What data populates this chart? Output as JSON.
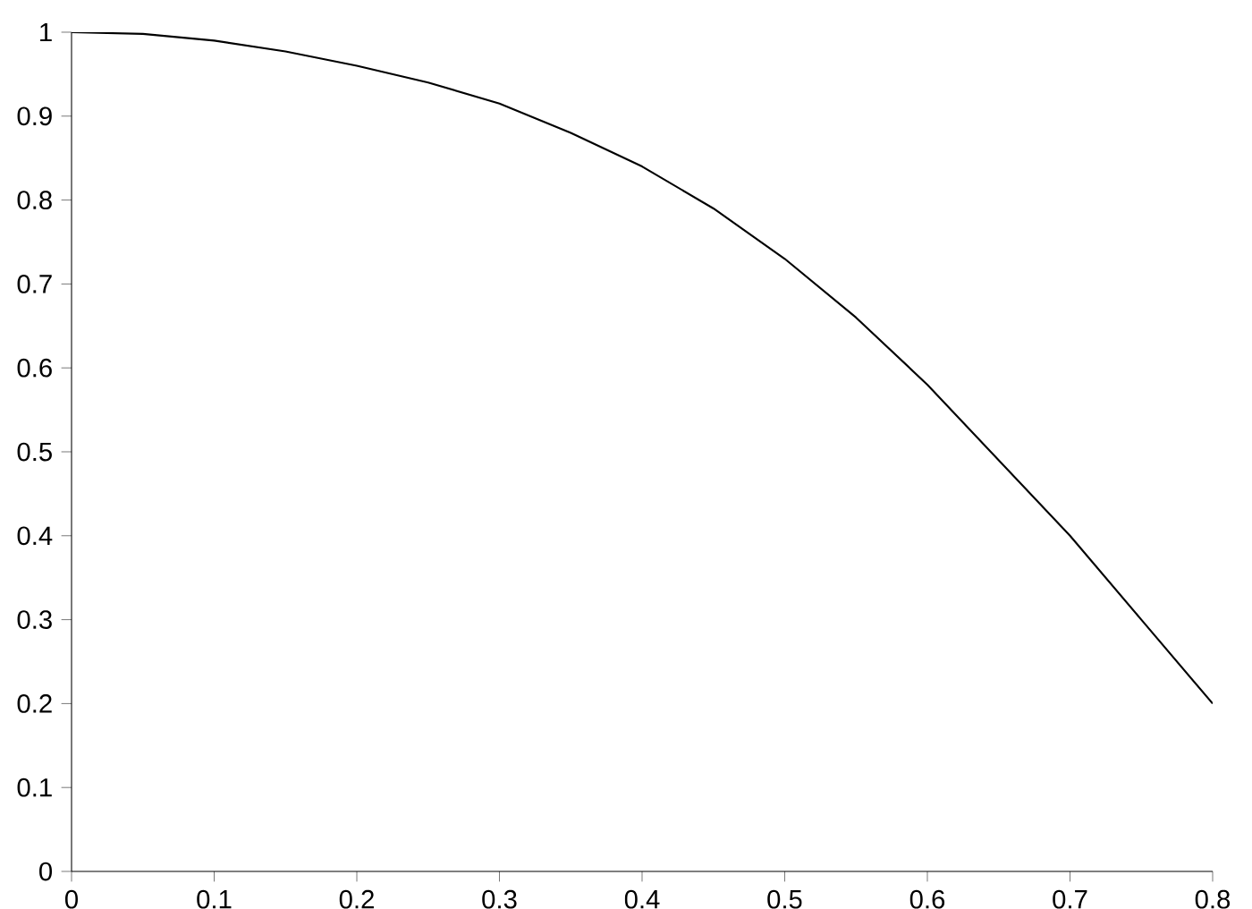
{
  "chart_data": {
    "type": "line",
    "x": [
      0,
      0.05,
      0.1,
      0.15,
      0.2,
      0.25,
      0.3,
      0.35,
      0.4,
      0.45,
      0.5,
      0.55,
      0.6,
      0.65,
      0.7,
      0.75,
      0.8
    ],
    "series": [
      {
        "color": "#000000",
        "values": [
          1,
          0.998,
          0.99,
          0.977,
          0.96,
          0.94,
          0.915,
          0.88,
          0.84,
          0.79,
          0.73,
          0.66,
          0.58,
          0.49,
          0.4,
          0.3,
          0.2
        ]
      }
    ],
    "xlim": [
      0,
      0.8
    ],
    "ylim": [
      0,
      1
    ],
    "xticks": [
      0,
      0.1,
      0.2,
      0.3,
      0.4,
      0.5,
      0.6,
      0.7,
      0.8
    ],
    "yticks": [
      0,
      0.1,
      0.2,
      0.3,
      0.4,
      0.5,
      0.6,
      0.7,
      0.8,
      0.9,
      1
    ],
    "grid": false,
    "marker": "none",
    "line_style": "solid"
  }
}
